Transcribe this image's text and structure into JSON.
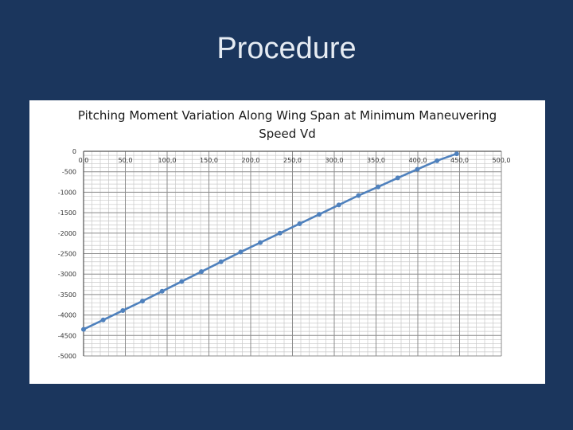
{
  "slide": {
    "title": "Procedure"
  },
  "chart_data": {
    "type": "line",
    "title": "Pitching Moment Variation Along Wing Span at Minimum Maneuvering Speed Vd",
    "xlabel": "",
    "ylabel": "",
    "x_ticks": [
      "0,0",
      "50,0",
      "100,0",
      "150,0",
      "200,0",
      "250,0",
      "300,0",
      "350,0",
      "400,0",
      "450,0",
      "500,0"
    ],
    "y_ticks": [
      "0",
      "-500",
      "-1000",
      "-1500",
      "-2000",
      "-2500",
      "-3000",
      "-3500",
      "-4000",
      "-4500",
      "-5000"
    ],
    "xlim": [
      0,
      500
    ],
    "ylim": [
      -5000,
      0
    ],
    "grid": true,
    "legend": "none",
    "series_color": "#4f81bd",
    "series": [
      {
        "x": [
          0,
          23.5,
          47,
          70.5,
          94,
          117.5,
          141,
          164.5,
          188,
          211.5,
          235,
          258.5,
          282,
          305.5,
          329,
          352.5,
          376,
          399.5,
          423,
          446.5
        ],
        "y": [
          -4350,
          -4120,
          -3890,
          -3660,
          -3420,
          -3180,
          -2940,
          -2700,
          -2460,
          -2230,
          -2000,
          -1770,
          -1540,
          -1310,
          -1080,
          -870,
          -650,
          -440,
          -230,
          -60
        ]
      }
    ]
  }
}
